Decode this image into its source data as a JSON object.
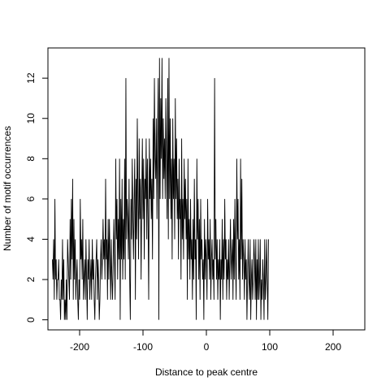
{
  "chart_data": {
    "type": "line",
    "title": "",
    "xlabel": "Distance to peak centre",
    "ylabel": "Number of motif occurrences",
    "xlim": [
      -250,
      250
    ],
    "ylim": [
      -0.5,
      13.5
    ],
    "xticks": [
      -200,
      -100,
      0,
      100,
      200
    ],
    "xtick_labels": [
      "-200",
      "-100",
      "0",
      "100",
      "200"
    ],
    "yticks": [
      0,
      2,
      4,
      6,
      8,
      10,
      12
    ],
    "ytick_labels": [
      "0",
      "2",
      "4",
      "6",
      "8",
      "10",
      "12"
    ],
    "grid": false,
    "series": [
      {
        "color": "#000000",
        "x_start": -243,
        "x_step": 1,
        "values": [
          3,
          2,
          4,
          1,
          6,
          2,
          3,
          1,
          2,
          2,
          3,
          1,
          1,
          0,
          2,
          1,
          4,
          1,
          3,
          0,
          1,
          0,
          2,
          0,
          4,
          3,
          2,
          1,
          5,
          2,
          6,
          3,
          7,
          1,
          5,
          2,
          4,
          1,
          2,
          3,
          1,
          0,
          2,
          1,
          6,
          3,
          4,
          2,
          5,
          1,
          2,
          3,
          1,
          4,
          2,
          0,
          3,
          2,
          4,
          1,
          2,
          3,
          1,
          4,
          2,
          3,
          1,
          0,
          2,
          3,
          4,
          1,
          3,
          2,
          0,
          1,
          3,
          4,
          2,
          3,
          5,
          3,
          4,
          2,
          7,
          3,
          4,
          1,
          5,
          2,
          5,
          3,
          1,
          4,
          2,
          1,
          3,
          5,
          3,
          1,
          8,
          4,
          6,
          2,
          5,
          3,
          8,
          0,
          6,
          3,
          7,
          2,
          5,
          3,
          8,
          2,
          12,
          4,
          6,
          5,
          3,
          7,
          2,
          0,
          6,
          4,
          8,
          5,
          3,
          6,
          8,
          1,
          7,
          4,
          10,
          6,
          3,
          9,
          5,
          7,
          2,
          6,
          9,
          5,
          8,
          3,
          7,
          6,
          9,
          4,
          8,
          5,
          1,
          9,
          6,
          8,
          5,
          7,
          3,
          10,
          6,
          12,
          8,
          7,
          10,
          5,
          9,
          12,
          0,
          13,
          6,
          11,
          8,
          13,
          6,
          10,
          7,
          9,
          6,
          11,
          8,
          5,
          12,
          4,
          13,
          6,
          10,
          5,
          8,
          3,
          10,
          6,
          8,
          4,
          11,
          6,
          9,
          5,
          7,
          3,
          8,
          5,
          6,
          2,
          9,
          4,
          6,
          3,
          8,
          5,
          7,
          4,
          6,
          1,
          8,
          3,
          5,
          2,
          6,
          3,
          4,
          1,
          5,
          2,
          7,
          3,
          4,
          0,
          8,
          4,
          6,
          2,
          5,
          1,
          6,
          3,
          4,
          2,
          3,
          0,
          5,
          2,
          4,
          3,
          1,
          6,
          3,
          4,
          2,
          5,
          1,
          3,
          4,
          2,
          3,
          1,
          12,
          3,
          5,
          2,
          4,
          1,
          3,
          2,
          4,
          0,
          3,
          2,
          5,
          1,
          4,
          2,
          6,
          3,
          4,
          1,
          3,
          2,
          4,
          1,
          3,
          5,
          2,
          3,
          4,
          1,
          5,
          2,
          6,
          3,
          1,
          8,
          4,
          6,
          2,
          4,
          1,
          8,
          3,
          7,
          2,
          4,
          3,
          1,
          4,
          2,
          3,
          0,
          2,
          4,
          2,
          1,
          4,
          0,
          2,
          3,
          1,
          2,
          4,
          3,
          1,
          4,
          0,
          3,
          1,
          4,
          1,
          2,
          4,
          0,
          2,
          1,
          3,
          2,
          0,
          4,
          1,
          2,
          4,
          2,
          0,
          4
        ]
      }
    ]
  }
}
